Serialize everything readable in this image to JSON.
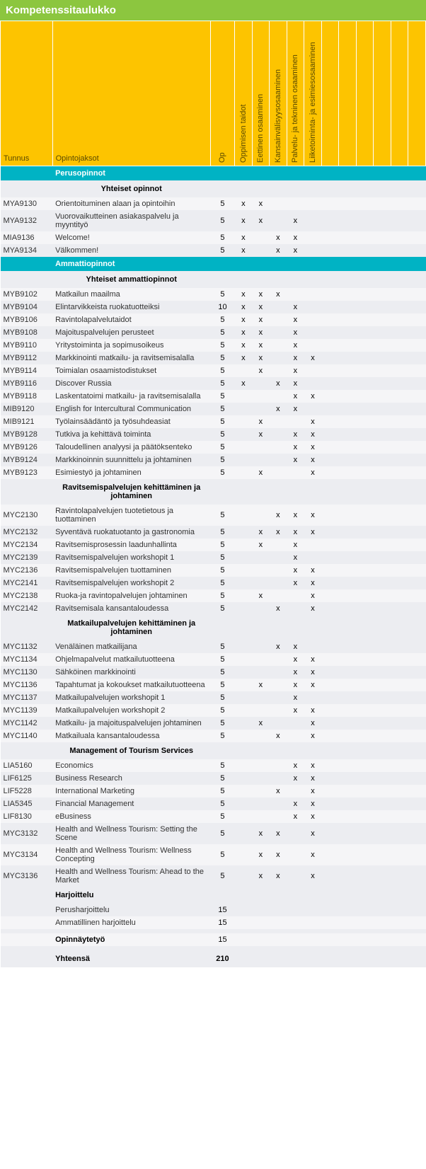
{
  "title": "Kompetenssitaulukko",
  "headers": {
    "code": "Tunnus",
    "name": "Opintojaksot",
    "cols": [
      "Op",
      "Oppimisen taidot",
      "Eettinen osaaminen",
      "Kansainvälisyysosaaminen",
      "Palvelu- ja tekninen osaaminen",
      "Liiketoiminta- ja esimiesosaaminen"
    ]
  },
  "colors": {
    "titleBg": "#8cc63f",
    "headerBg": "#fdc400",
    "cyan": "#00b3c4",
    "rowA": "#ecedf1",
    "rowB": "#f5f5f7"
  },
  "sections": [
    {
      "type": "cyan",
      "label": "Perusopinnot"
    },
    {
      "type": "sub",
      "label": "Yhteiset opinnot"
    },
    {
      "type": "rows",
      "rows": [
        {
          "code": "MYA9130",
          "name": "Orientoituminen alaan ja opintoihin",
          "op": 5,
          "marks": [
            1,
            1,
            0,
            0,
            0
          ]
        },
        {
          "code": "MYA9132",
          "name": "Vuorovaikutteinen asiakaspalvelu ja myyntityö",
          "op": 5,
          "marks": [
            1,
            1,
            0,
            1,
            0
          ]
        },
        {
          "code": "MIA9136",
          "name": "Welcome!",
          "op": 5,
          "marks": [
            1,
            0,
            1,
            1,
            0
          ]
        },
        {
          "code": "MYA9134",
          "name": "Välkommen!",
          "op": 5,
          "marks": [
            1,
            0,
            1,
            1,
            0
          ]
        }
      ]
    },
    {
      "type": "cyan",
      "label": "Ammattiopinnot"
    },
    {
      "type": "sub",
      "label": "Yhteiset ammattiopinnot"
    },
    {
      "type": "rows",
      "rows": [
        {
          "code": "MYB9102",
          "name": "Matkailun maailma",
          "op": 5,
          "marks": [
            1,
            1,
            1,
            0,
            0
          ]
        },
        {
          "code": "MYB9104",
          "name": "Elintarvikkeista ruokatuotteiksi",
          "op": 10,
          "marks": [
            1,
            1,
            0,
            1,
            0
          ]
        },
        {
          "code": "MYB9106",
          "name": "Ravintolapalvelutaidot",
          "op": 5,
          "marks": [
            1,
            1,
            0,
            1,
            0
          ]
        },
        {
          "code": "MYB9108",
          "name": "Majoituspalvelujen perusteet",
          "op": 5,
          "marks": [
            1,
            1,
            0,
            1,
            0
          ]
        },
        {
          "code": "MYB9110",
          "name": "Yritystoiminta ja sopimusoikeus",
          "op": 5,
          "marks": [
            1,
            1,
            0,
            1,
            0
          ]
        },
        {
          "code": "MYB9112",
          "name": "Markkinointi matkailu- ja ravitsemisalalla",
          "op": 5,
          "marks": [
            1,
            1,
            0,
            1,
            1
          ]
        },
        {
          "code": "MYB9114",
          "name": "Toimialan osaamistodistukset",
          "op": 5,
          "marks": [
            0,
            1,
            0,
            1,
            0
          ]
        },
        {
          "code": "MYB9116",
          "name": "Discover Russia",
          "op": 5,
          "marks": [
            1,
            0,
            1,
            1,
            0
          ]
        },
        {
          "code": "MYB9118",
          "name": "Laskentatoimi matkailu- ja ravitsemisalalla",
          "op": 5,
          "marks": [
            0,
            0,
            0,
            1,
            1
          ]
        },
        {
          "code": "MIB9120",
          "name": "English for Intercultural Communication",
          "op": 5,
          "marks": [
            0,
            0,
            1,
            1,
            0
          ]
        },
        {
          "code": "MIB9121",
          "name": "Työlainsäädäntö ja työsuhdeasiat",
          "op": 5,
          "marks": [
            0,
            1,
            0,
            0,
            1
          ]
        },
        {
          "code": "MYB9128",
          "name": "Tutkiva ja kehittävä toiminta",
          "op": 5,
          "marks": [
            0,
            1,
            0,
            1,
            1
          ]
        },
        {
          "code": "MYB9126",
          "name": "Taloudellinen analyysi ja päätöksenteko",
          "op": 5,
          "marks": [
            0,
            0,
            0,
            1,
            1
          ]
        },
        {
          "code": "MYB9124",
          "name": "Markkinoinnin suunnittelu ja johtaminen",
          "op": 5,
          "marks": [
            0,
            0,
            0,
            1,
            1
          ]
        },
        {
          "code": "MYB9123",
          "name": "Esimiestyö ja johtaminen",
          "op": 5,
          "marks": [
            0,
            1,
            0,
            0,
            1
          ]
        }
      ]
    },
    {
      "type": "sub",
      "label": "Ravitsemispalvelujen kehittäminen ja johtaminen"
    },
    {
      "type": "rows",
      "rows": [
        {
          "code": "MYC2130",
          "name": "Ravintolapalvelujen tuotetietous ja tuottaminen",
          "op": 5,
          "marks": [
            0,
            0,
            1,
            1,
            1
          ]
        },
        {
          "code": "MYC2132",
          "name": "Syventävä ruokatuotanto ja gastronomia",
          "op": 5,
          "marks": [
            0,
            1,
            1,
            1,
            1
          ]
        },
        {
          "code": "MYC2134",
          "name": "Ravitsemisprosessin laadunhallinta",
          "op": 5,
          "marks": [
            0,
            1,
            0,
            1,
            0
          ]
        },
        {
          "code": "MYC2139",
          "name": "Ravitsemispalvelujen workshopit 1",
          "op": 5,
          "marks": [
            0,
            0,
            0,
            1,
            0
          ]
        },
        {
          "code": "MYC2136",
          "name": "Ravitsemispalvelujen tuottaminen",
          "op": 5,
          "marks": [
            0,
            0,
            0,
            1,
            1
          ]
        },
        {
          "code": "MYC2141",
          "name": "Ravitsemispalvelujen workshopit 2",
          "op": 5,
          "marks": [
            0,
            0,
            0,
            1,
            1
          ]
        },
        {
          "code": "MYC2138",
          "name": "Ruoka-ja ravintopalvelujen johtaminen",
          "op": 5,
          "marks": [
            0,
            1,
            0,
            0,
            1
          ]
        },
        {
          "code": "MYC2142",
          "name": "Ravitsemisala kansantaloudessa",
          "op": 5,
          "marks": [
            0,
            0,
            1,
            0,
            1
          ]
        }
      ]
    },
    {
      "type": "sub",
      "label": "Matkailupalvelujen kehittäminen ja johtaminen"
    },
    {
      "type": "rows",
      "rows": [
        {
          "code": "MYC1132",
          "name": "Venäläinen matkailijana",
          "op": 5,
          "marks": [
            0,
            0,
            1,
            1,
            0
          ]
        },
        {
          "code": "MYC1134",
          "name": "Ohjelmapalvelut matkailutuotteena",
          "op": 5,
          "marks": [
            0,
            0,
            0,
            1,
            1
          ]
        },
        {
          "code": "MYC1130",
          "name": "Sähköinen markkinointi",
          "op": 5,
          "marks": [
            0,
            0,
            0,
            1,
            1
          ]
        },
        {
          "code": "MYC1136",
          "name": "Tapahtumat ja kokoukset matkailutuotteena",
          "op": 5,
          "marks": [
            0,
            1,
            0,
            1,
            1
          ]
        },
        {
          "code": "MYC1137",
          "name": "Matkailupalvelujen workshopit 1",
          "op": 5,
          "marks": [
            0,
            0,
            0,
            1,
            0
          ]
        },
        {
          "code": "MYC1139",
          "name": "Matkailupalvelujen workshopit 2",
          "op": 5,
          "marks": [
            0,
            0,
            0,
            1,
            1
          ]
        },
        {
          "code": "MYC1142",
          "name": "Matkailu- ja majoituspalvelujen johtaminen",
          "op": 5,
          "marks": [
            0,
            1,
            0,
            0,
            1
          ]
        },
        {
          "code": "MYC1140",
          "name": "Matkailuala kansantaloudessa",
          "op": 5,
          "marks": [
            0,
            0,
            1,
            0,
            1
          ]
        }
      ]
    },
    {
      "type": "sub",
      "label": "Management of Tourism Services"
    },
    {
      "type": "rows",
      "rows": [
        {
          "code": "LIA5160",
          "name": "Economics",
          "op": 5,
          "marks": [
            0,
            0,
            0,
            1,
            1
          ]
        },
        {
          "code": "LIF6125",
          "name": "Business Research",
          "op": 5,
          "marks": [
            0,
            0,
            0,
            1,
            1
          ]
        },
        {
          "code": "LIF5228",
          "name": "International Marketing",
          "op": 5,
          "marks": [
            0,
            0,
            1,
            0,
            1
          ]
        },
        {
          "code": "LIA5345",
          "name": "Financial Management",
          "op": 5,
          "marks": [
            0,
            0,
            0,
            1,
            1
          ]
        },
        {
          "code": "LIF8130",
          "name": "eBusiness",
          "op": 5,
          "marks": [
            0,
            0,
            0,
            1,
            1
          ]
        },
        {
          "code": "MYC3132",
          "name": "Health and Wellness Tourism: Setting the Scene",
          "op": 5,
          "marks": [
            0,
            1,
            1,
            0,
            1
          ]
        },
        {
          "code": "MYC3134",
          "name": "Health and Wellness Tourism: Wellness Concepting",
          "op": 5,
          "marks": [
            0,
            1,
            1,
            0,
            1
          ]
        },
        {
          "code": "MYC3136",
          "name": "Health and Wellness Tourism: Ahead to the Market",
          "op": 5,
          "marks": [
            0,
            1,
            1,
            0,
            1
          ]
        }
      ]
    },
    {
      "type": "sub-left",
      "label": "Harjoittelu"
    },
    {
      "type": "rows",
      "rows": [
        {
          "code": "",
          "name": "Perusharjoittelu",
          "op": 15,
          "marks": [
            0,
            0,
            0,
            0,
            0
          ]
        },
        {
          "code": "",
          "name": "Ammatillinen harjoittelu",
          "op": 15,
          "marks": [
            0,
            0,
            0,
            0,
            0
          ]
        }
      ]
    },
    {
      "type": "spacer"
    },
    {
      "type": "bold-row",
      "name": "Opinnäytetyö",
      "op": 15
    },
    {
      "type": "spacer"
    },
    {
      "type": "total",
      "name": "Yhteensä",
      "op": 210
    }
  ]
}
